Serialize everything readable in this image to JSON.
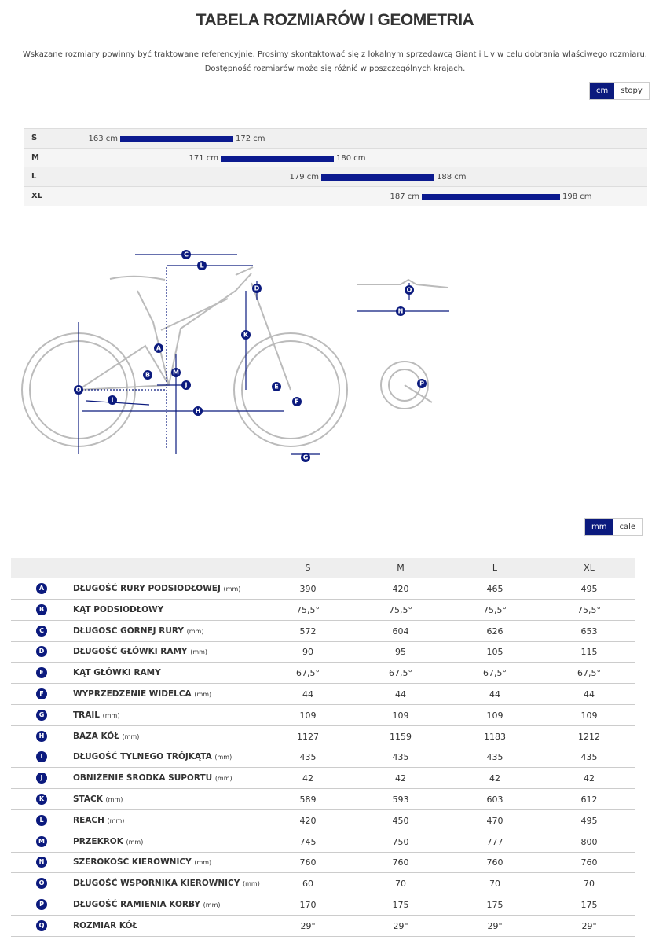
{
  "header": {
    "title": "TABELA ROZMIARÓW I GEOMETRIA",
    "intro": [
      "Wskazane rozmiary powinny być traktowane referencyjnie. Prosimy skontaktować się z lokalnym sprzedawcą Giant i Liv w celu dobrania właściwego rozmiaru.",
      "Dostępność rozmiarów może się różnić w poszczególnych krajach."
    ]
  },
  "height_units": [
    "cm",
    "stopy"
  ],
  "size_ranges": {
    "rows": [
      {
        "size": "S",
        "min": 163,
        "max": 172,
        "min_label": "163 cm",
        "max_label": "172 cm"
      },
      {
        "size": "M",
        "min": 171,
        "max": 180,
        "min_label": "171 cm",
        "max_label": "180 cm"
      },
      {
        "size": "L",
        "min": 179,
        "max": 188,
        "min_label": "179 cm",
        "max_label": "188 cm"
      },
      {
        "size": "XL",
        "min": 187,
        "max": 198,
        "min_label": "187 cm",
        "max_label": "198 cm"
      }
    ]
  },
  "geometry_units": [
    "mm",
    "cale"
  ],
  "table": {
    "columns": [
      "S",
      "M",
      "L",
      "XL"
    ],
    "rows": [
      {
        "letter": "A",
        "name": "DŁUGOŚĆ RURY PODSIODŁOWEJ",
        "unit": "(mm)",
        "values": [
          "390",
          "420",
          "465",
          "495"
        ]
      },
      {
        "letter": "B",
        "name": "KĄT PODSIODŁOWY",
        "values": [
          "75,5°",
          "75,5°",
          "75,5°",
          "75,5°"
        ]
      },
      {
        "letter": "C",
        "name": "DŁUGOŚĆ GÓRNEJ RURY",
        "unit": "(mm)",
        "values": [
          "572",
          "604",
          "626",
          "653"
        ]
      },
      {
        "letter": "D",
        "name": "DŁUGOŚĆ GŁÓWKI RAMY",
        "unit": "(mm)",
        "values": [
          "90",
          "95",
          "105",
          "115"
        ]
      },
      {
        "letter": "E",
        "name": "KĄT GŁÓWKI RAMY",
        "values": [
          "67,5°",
          "67,5°",
          "67,5°",
          "67,5°"
        ]
      },
      {
        "letter": "F",
        "name": "WYPRZEDZENIE WIDELCA",
        "unit": "(mm)",
        "values": [
          "44",
          "44",
          "44",
          "44"
        ]
      },
      {
        "letter": "G",
        "name": "TRAIL",
        "unit": "(mm)",
        "values": [
          "109",
          "109",
          "109",
          "109"
        ]
      },
      {
        "letter": "H",
        "name": "BAZA KÓŁ",
        "unit": "(mm)",
        "values": [
          "1127",
          "1159",
          "1183",
          "1212"
        ]
      },
      {
        "letter": "I",
        "name": "DŁUGOŚĆ TYLNEGO TRÓJKĄTA",
        "unit": "(mm)",
        "values": [
          "435",
          "435",
          "435",
          "435"
        ]
      },
      {
        "letter": "J",
        "name": "OBNIŻENIE ŚRODKA SUPORTU",
        "unit": "(mm)",
        "values": [
          "42",
          "42",
          "42",
          "42"
        ]
      },
      {
        "letter": "K",
        "name": "STACK",
        "unit": "(mm)",
        "values": [
          "589",
          "593",
          "603",
          "612"
        ]
      },
      {
        "letter": "L",
        "name": "REACH",
        "unit": "(mm)",
        "values": [
          "420",
          "450",
          "470",
          "495"
        ]
      },
      {
        "letter": "M",
        "name": "PRZEKROK",
        "unit": "(mm)",
        "values": [
          "745",
          "750",
          "777",
          "800"
        ]
      },
      {
        "letter": "N",
        "name": "SZEROKOŚĆ KIEROWNICY",
        "unit": "(mm)",
        "values": [
          "760",
          "760",
          "760",
          "760"
        ]
      },
      {
        "letter": "O",
        "name": "DŁUGOŚĆ WSPORNIKA KIEROWNICY",
        "unit": "(mm)",
        "values": [
          "60",
          "70",
          "70",
          "70"
        ]
      },
      {
        "letter": "P",
        "name": "DŁUGOŚĆ RAMIENIA KORBY",
        "unit": "(mm)",
        "values": [
          "170",
          "175",
          "175",
          "175"
        ]
      },
      {
        "letter": "Q",
        "name": "ROZMIAR KÓŁ",
        "values": [
          "29\"",
          "29\"",
          "29\"",
          "29\""
        ]
      }
    ]
  }
}
